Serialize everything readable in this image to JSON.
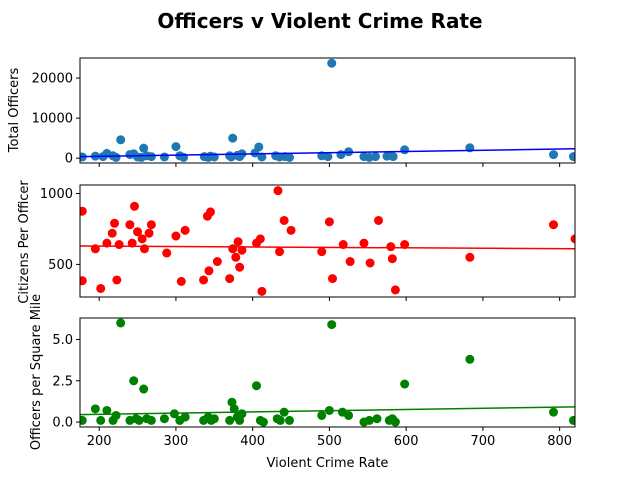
{
  "figure": {
    "title": "Officers v Violent Crime Rate",
    "xlabel": "Violent Crime Rate"
  },
  "chart_data": [
    {
      "type": "scatter",
      "ylabel": "Total Officers",
      "color": "#1f77b4",
      "trend_color": "#0000ff",
      "xlim": [
        175,
        820
      ],
      "ylim": [
        -1200,
        25000
      ],
      "xticks": [
        200,
        300,
        400,
        500,
        600,
        700,
        800
      ],
      "xticklabels_visible": false,
      "yticks": [
        0,
        10000,
        20000
      ],
      "trend": {
        "x": [
          175,
          820
        ],
        "y": [
          400,
          2350
        ]
      },
      "points": [
        {
          "x": 178,
          "y": 300
        },
        {
          "x": 195,
          "y": 500
        },
        {
          "x": 205,
          "y": 400
        },
        {
          "x": 210,
          "y": 1200
        },
        {
          "x": 218,
          "y": 600
        },
        {
          "x": 222,
          "y": 200
        },
        {
          "x": 228,
          "y": 4600
        },
        {
          "x": 240,
          "y": 900
        },
        {
          "x": 245,
          "y": 1100
        },
        {
          "x": 250,
          "y": 300
        },
        {
          "x": 255,
          "y": 200
        },
        {
          "x": 258,
          "y": 2500
        },
        {
          "x": 262,
          "y": 600
        },
        {
          "x": 268,
          "y": 400
        },
        {
          "x": 285,
          "y": 300
        },
        {
          "x": 300,
          "y": 2900
        },
        {
          "x": 305,
          "y": 600
        },
        {
          "x": 310,
          "y": 200
        },
        {
          "x": 337,
          "y": 400
        },
        {
          "x": 342,
          "y": 200
        },
        {
          "x": 345,
          "y": 500
        },
        {
          "x": 350,
          "y": 300
        },
        {
          "x": 370,
          "y": 600
        },
        {
          "x": 372,
          "y": 300
        },
        {
          "x": 374,
          "y": 5000
        },
        {
          "x": 380,
          "y": 700
        },
        {
          "x": 383,
          "y": 400
        },
        {
          "x": 386,
          "y": 1100
        },
        {
          "x": 403,
          "y": 1300
        },
        {
          "x": 408,
          "y": 2800
        },
        {
          "x": 412,
          "y": 300
        },
        {
          "x": 430,
          "y": 600
        },
        {
          "x": 435,
          "y": 300
        },
        {
          "x": 442,
          "y": 400
        },
        {
          "x": 448,
          "y": 200
        },
        {
          "x": 490,
          "y": 600
        },
        {
          "x": 498,
          "y": 400
        },
        {
          "x": 503,
          "y": 23700
        },
        {
          "x": 515,
          "y": 900
        },
        {
          "x": 525,
          "y": 1600
        },
        {
          "x": 545,
          "y": 400
        },
        {
          "x": 552,
          "y": 200
        },
        {
          "x": 560,
          "y": 400
        },
        {
          "x": 575,
          "y": 500
        },
        {
          "x": 580,
          "y": 700
        },
        {
          "x": 583,
          "y": 400
        },
        {
          "x": 598,
          "y": 2100
        },
        {
          "x": 683,
          "y": 2600
        },
        {
          "x": 792,
          "y": 900
        },
        {
          "x": 818,
          "y": 400
        }
      ]
    },
    {
      "type": "scatter",
      "ylabel": "Citizens Per Officer",
      "color": "#ff0000",
      "trend_color": "#ff0000",
      "xlim": [
        175,
        820
      ],
      "ylim": [
        270,
        1060
      ],
      "xticks": [
        200,
        300,
        400,
        500,
        600,
        700,
        800
      ],
      "xticklabels_visible": false,
      "yticks": [
        500,
        1000
      ],
      "trend": {
        "x": [
          175,
          820
        ],
        "y": [
          630,
          610
        ]
      },
      "points": [
        {
          "x": 178,
          "y": 875
        },
        {
          "x": 178,
          "y": 385
        },
        {
          "x": 195,
          "y": 610
        },
        {
          "x": 202,
          "y": 330
        },
        {
          "x": 210,
          "y": 650
        },
        {
          "x": 217,
          "y": 720
        },
        {
          "x": 220,
          "y": 790
        },
        {
          "x": 223,
          "y": 390
        },
        {
          "x": 226,
          "y": 640
        },
        {
          "x": 240,
          "y": 780
        },
        {
          "x": 243,
          "y": 650
        },
        {
          "x": 246,
          "y": 910
        },
        {
          "x": 250,
          "y": 730
        },
        {
          "x": 256,
          "y": 680
        },
        {
          "x": 259,
          "y": 610
        },
        {
          "x": 265,
          "y": 720
        },
        {
          "x": 268,
          "y": 780
        },
        {
          "x": 288,
          "y": 580
        },
        {
          "x": 300,
          "y": 700
        },
        {
          "x": 307,
          "y": 380
        },
        {
          "x": 312,
          "y": 740
        },
        {
          "x": 336,
          "y": 390
        },
        {
          "x": 341,
          "y": 840
        },
        {
          "x": 343,
          "y": 455
        },
        {
          "x": 345,
          "y": 870
        },
        {
          "x": 354,
          "y": 520
        },
        {
          "x": 370,
          "y": 400
        },
        {
          "x": 374,
          "y": 610
        },
        {
          "x": 378,
          "y": 550
        },
        {
          "x": 381,
          "y": 660
        },
        {
          "x": 383,
          "y": 480
        },
        {
          "x": 386,
          "y": 600
        },
        {
          "x": 405,
          "y": 650
        },
        {
          "x": 410,
          "y": 680
        },
        {
          "x": 412,
          "y": 310
        },
        {
          "x": 433,
          "y": 1020
        },
        {
          "x": 435,
          "y": 590
        },
        {
          "x": 441,
          "y": 810
        },
        {
          "x": 450,
          "y": 740
        },
        {
          "x": 490,
          "y": 590
        },
        {
          "x": 500,
          "y": 800
        },
        {
          "x": 504,
          "y": 400
        },
        {
          "x": 518,
          "y": 640
        },
        {
          "x": 527,
          "y": 520
        },
        {
          "x": 545,
          "y": 650
        },
        {
          "x": 553,
          "y": 510
        },
        {
          "x": 564,
          "y": 810
        },
        {
          "x": 580,
          "y": 625
        },
        {
          "x": 582,
          "y": 540
        },
        {
          "x": 586,
          "y": 320
        },
        {
          "x": 598,
          "y": 640
        },
        {
          "x": 683,
          "y": 550
        },
        {
          "x": 792,
          "y": 780
        },
        {
          "x": 820,
          "y": 680
        }
      ]
    },
    {
      "type": "scatter",
      "ylabel": "Officers per Square Mile",
      "color": "#008000",
      "trend_color": "#008000",
      "xlim": [
        175,
        820
      ],
      "ylim": [
        -0.3,
        6.3
      ],
      "xticks": [
        200,
        300,
        400,
        500,
        600,
        700,
        800
      ],
      "xticklabels_visible": true,
      "yticks": [
        0.0,
        2.5,
        5.0
      ],
      "yticklabels": [
        "0.0",
        "2.5",
        "5.0"
      ],
      "trend": {
        "x": [
          175,
          820
        ],
        "y": [
          0.45,
          0.92
        ]
      },
      "points": [
        {
          "x": 178,
          "y": 0.1
        },
        {
          "x": 195,
          "y": 0.8
        },
        {
          "x": 202,
          "y": 0.1
        },
        {
          "x": 210,
          "y": 0.7
        },
        {
          "x": 218,
          "y": 0.1
        },
        {
          "x": 222,
          "y": 0.4
        },
        {
          "x": 228,
          "y": 6.0
        },
        {
          "x": 240,
          "y": 0.1
        },
        {
          "x": 245,
          "y": 2.5
        },
        {
          "x": 248,
          "y": 0.2
        },
        {
          "x": 252,
          "y": 0.1
        },
        {
          "x": 258,
          "y": 2.0
        },
        {
          "x": 262,
          "y": 0.2
        },
        {
          "x": 268,
          "y": 0.1
        },
        {
          "x": 285,
          "y": 0.2
        },
        {
          "x": 298,
          "y": 0.5
        },
        {
          "x": 305,
          "y": 0.1
        },
        {
          "x": 312,
          "y": 0.3
        },
        {
          "x": 336,
          "y": 0.1
        },
        {
          "x": 342,
          "y": 0.3
        },
        {
          "x": 346,
          "y": 0.1
        },
        {
          "x": 350,
          "y": 0.2
        },
        {
          "x": 370,
          "y": 0.1
        },
        {
          "x": 373,
          "y": 1.2
        },
        {
          "x": 376,
          "y": 0.8
        },
        {
          "x": 380,
          "y": 0.3
        },
        {
          "x": 383,
          "y": 0.1
        },
        {
          "x": 386,
          "y": 0.5
        },
        {
          "x": 405,
          "y": 2.2
        },
        {
          "x": 410,
          "y": 0.1
        },
        {
          "x": 414,
          "y": 0.0
        },
        {
          "x": 432,
          "y": 0.2
        },
        {
          "x": 436,
          "y": 0.1
        },
        {
          "x": 441,
          "y": 0.6
        },
        {
          "x": 448,
          "y": 0.1
        },
        {
          "x": 490,
          "y": 0.4
        },
        {
          "x": 500,
          "y": 0.7
        },
        {
          "x": 503,
          "y": 5.9
        },
        {
          "x": 517,
          "y": 0.6
        },
        {
          "x": 525,
          "y": 0.4
        },
        {
          "x": 545,
          "y": 0.0
        },
        {
          "x": 552,
          "y": 0.1
        },
        {
          "x": 562,
          "y": 0.2
        },
        {
          "x": 578,
          "y": 0.1
        },
        {
          "x": 582,
          "y": 0.2
        },
        {
          "x": 586,
          "y": 0.0
        },
        {
          "x": 598,
          "y": 2.3
        },
        {
          "x": 683,
          "y": 3.8
        },
        {
          "x": 792,
          "y": 0.6
        },
        {
          "x": 818,
          "y": 0.1
        }
      ]
    }
  ]
}
